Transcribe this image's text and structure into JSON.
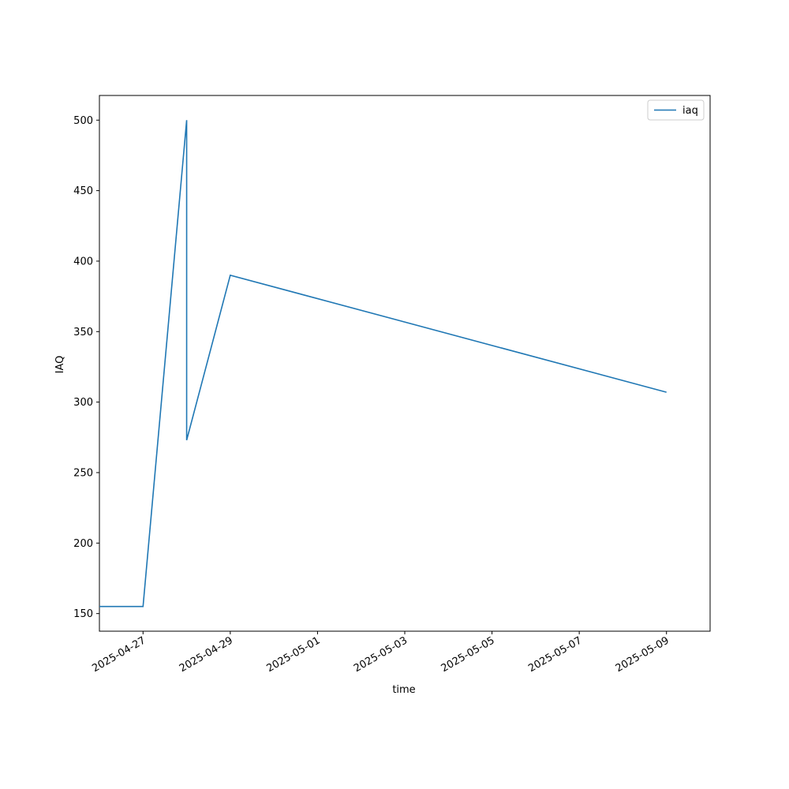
{
  "chart_data": {
    "type": "line",
    "x": [
      "2025-04-26",
      "2025-04-27",
      "2025-04-28",
      "2025-04-28",
      "2025-04-29",
      "2025-05-09"
    ],
    "series": [
      {
        "name": "iaq",
        "color": "#1f77b4",
        "values": [
          155,
          155,
          500,
          273,
          390,
          307
        ]
      }
    ],
    "x_label": "time",
    "y_label": "IAQ",
    "xlim": [
      "2025-04-26",
      "2025-05-10"
    ],
    "xticks": [
      "2025-04-27",
      "2025-04-29",
      "2025-05-01",
      "2025-05-03",
      "2025-05-05",
      "2025-05-07",
      "2025-05-09"
    ],
    "ylim": [
      137.5,
      517.5
    ],
    "yticks": [
      150,
      200,
      250,
      300,
      350,
      400,
      450,
      500
    ],
    "grid": false,
    "legend": "upper right"
  }
}
